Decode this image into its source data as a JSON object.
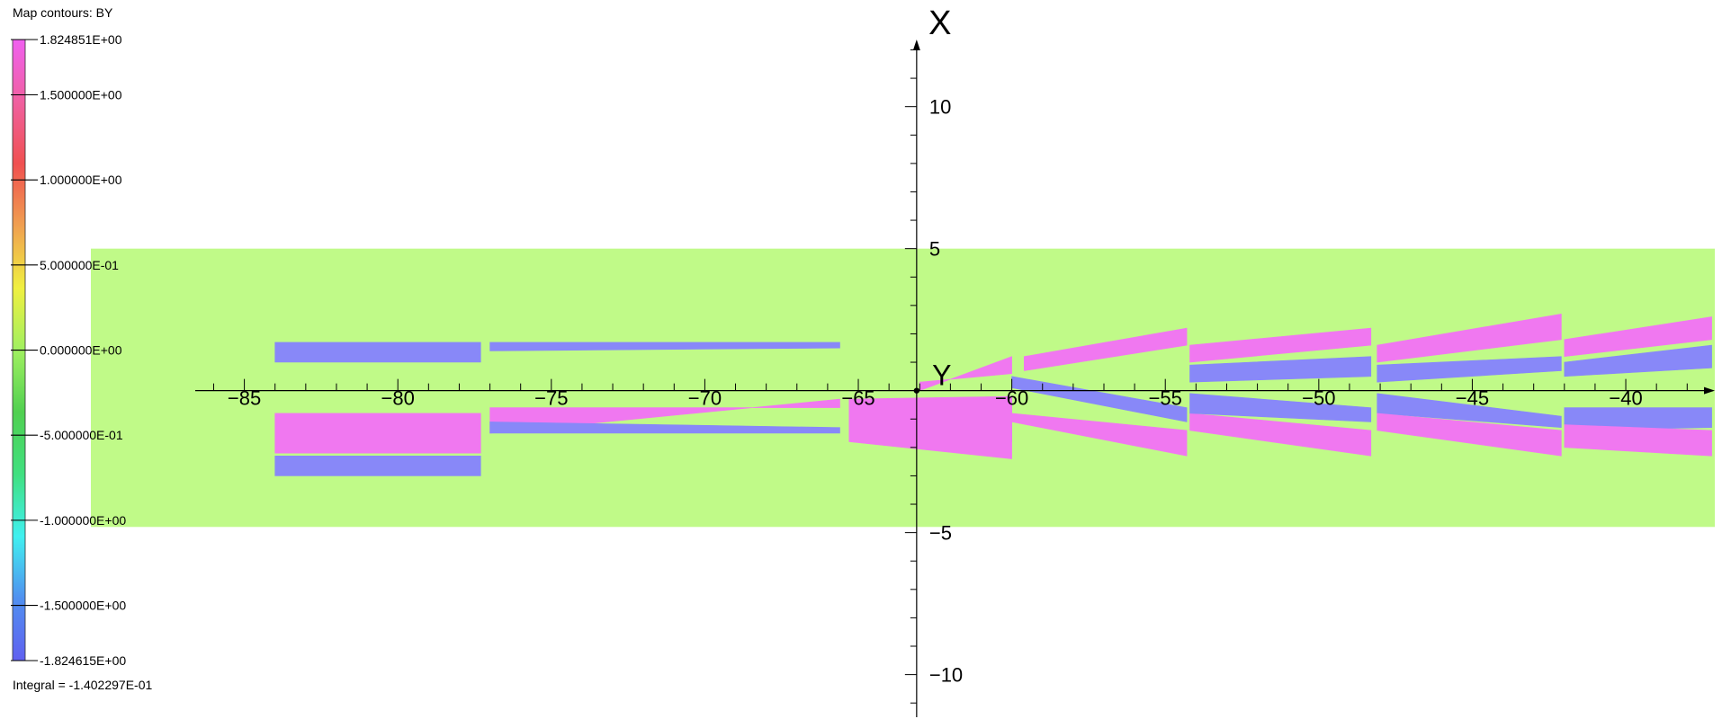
{
  "legend": {
    "title": "Map contours: BY",
    "integral": "Integral = -1.402297E-01",
    "entries": [
      {
        "value": 1.824851,
        "label": "1.824851E+00"
      },
      {
        "value": 1.5,
        "label": "1.500000E+00"
      },
      {
        "value": 1.0,
        "label": "1.000000E+00"
      },
      {
        "value": 0.5,
        "label": "5.000000E-01"
      },
      {
        "value": 0.0,
        "label": "0.000000E+00"
      },
      {
        "value": -0.5,
        "label": "-5.000000E-01"
      },
      {
        "value": -1.0,
        "label": "-1.000000E+00"
      },
      {
        "value": -1.5,
        "label": "-1.500000E+00"
      },
      {
        "value": -1.824615,
        "label": "-1.824615E+00"
      }
    ],
    "range": [
      -1.824615,
      1.824851
    ],
    "colors": [
      "#6060f0",
      "#5090f0",
      "#40f0f0",
      "#40e080",
      "#50d050",
      "#a0f060",
      "#f0f040",
      "#f0a050",
      "#f05050",
      "#f060a0",
      "#f060f0"
    ]
  },
  "chart_data": {
    "type": "heatmap",
    "xlabel": "Y",
    "ylabel": "X",
    "x_ticks": [
      -85,
      -80,
      -75,
      -70,
      -65,
      -60,
      -55,
      -50,
      -45,
      -40
    ],
    "y_ticks": [
      10,
      5,
      -5,
      -10
    ],
    "xlim": [
      -86.6,
      -37.1
    ],
    "ylim": [
      -11.5,
      12.3
    ],
    "origin": [
      -63.1,
      0.0
    ],
    "domain": {
      "x": [
        -90.0,
        -37.1
      ],
      "y": [
        -4.8,
        5.0
      ]
    },
    "background_value": 0.0,
    "colors": {
      "background": "#c0fa88",
      "positive": "#f078f0",
      "negative": "#8888f8"
    },
    "regions": [
      {
        "value": 1.82,
        "xl": -84.0,
        "xr": -77.3,
        "tl": [
          -0.8,
          -2.2
        ],
        "tr": [
          -0.8,
          -2.2
        ]
      },
      {
        "value": -1.82,
        "xl": -84.0,
        "xr": -77.3,
        "tl": [
          1.7,
          1.0
        ],
        "tr": [
          1.7,
          1.0
        ]
      },
      {
        "value": -1.82,
        "xl": -84.0,
        "xr": -77.3,
        "tl": [
          -2.3,
          -3.0
        ],
        "tr": [
          -2.3,
          -3.0
        ]
      },
      {
        "value": 1.82,
        "xl": -77.0,
        "xr": -65.6,
        "tl": [
          -0.6,
          -1.5
        ],
        "tr": [
          -0.6,
          -0.3
        ]
      },
      {
        "value": -1.82,
        "xl": -77.0,
        "xr": -65.6,
        "tl": [
          1.7,
          1.4
        ],
        "tr": [
          1.7,
          1.5
        ]
      },
      {
        "value": -1.82,
        "xl": -77.0,
        "xr": -65.6,
        "tl": [
          -1.1,
          -1.5
        ],
        "tr": [
          -1.3,
          -1.5
        ]
      },
      {
        "value": -1.82,
        "xl": -65.3,
        "xr": -60.0,
        "tl": [
          -0.5,
          -1.0
        ],
        "tr": [
          -0.2,
          -1.8
        ]
      },
      {
        "value": 1.82,
        "xl": -65.3,
        "xr": -60.0,
        "tl": [
          -0.3,
          -1.8
        ],
        "tr": [
          -0.2,
          -2.4
        ]
      },
      {
        "value": 1.82,
        "xl": -63.0,
        "xr": -60.0,
        "tl": [
          0.0,
          0.3
        ],
        "tr": [
          1.2,
          0.6
        ]
      },
      {
        "value": -1.82,
        "xl": -60.0,
        "xr": -54.3,
        "tl": [
          0.5,
          0.1
        ],
        "tr": [
          -0.6,
          -1.1
        ]
      },
      {
        "value": 1.82,
        "xl": -60.0,
        "xr": -54.3,
        "tl": [
          -0.8,
          -1.1
        ],
        "tr": [
          -1.4,
          -2.3
        ]
      },
      {
        "value": 1.82,
        "xl": -59.6,
        "xr": -54.3,
        "tl": [
          1.2,
          0.7
        ],
        "tr": [
          2.2,
          1.6
        ]
      },
      {
        "value": -1.82,
        "xl": -54.2,
        "xr": -48.3,
        "tl": [
          0.9,
          0.3
        ],
        "tr": [
          1.2,
          0.5
        ]
      },
      {
        "value": 1.82,
        "xl": -54.2,
        "xr": -48.3,
        "tl": [
          -0.8,
          -1.4
        ],
        "tr": [
          -1.4,
          -2.3
        ]
      },
      {
        "value": -1.82,
        "xl": -54.2,
        "xr": -48.3,
        "tl": [
          -0.1,
          -0.8
        ],
        "tr": [
          -0.6,
          -1.1
        ]
      },
      {
        "value": 1.82,
        "xl": -54.2,
        "xr": -48.3,
        "tl": [
          1.6,
          1.0
        ],
        "tr": [
          2.2,
          1.6
        ]
      },
      {
        "value": 1.82,
        "xl": -48.1,
        "xr": -42.1,
        "tl": [
          1.6,
          1.0
        ],
        "tr": [
          2.7,
          1.8
        ]
      },
      {
        "value": -1.82,
        "xl": -48.1,
        "xr": -42.1,
        "tl": [
          0.9,
          0.3
        ],
        "tr": [
          1.2,
          0.7
        ]
      },
      {
        "value": -1.82,
        "xl": -48.1,
        "xr": -42.1,
        "tl": [
          -0.1,
          -0.8
        ],
        "tr": [
          -0.9,
          -1.3
        ]
      },
      {
        "value": 1.82,
        "xl": -48.1,
        "xr": -42.1,
        "tl": [
          -0.8,
          -1.4
        ],
        "tr": [
          -1.4,
          -2.3
        ]
      },
      {
        "value": 1.82,
        "xl": -42.0,
        "xr": -37.2,
        "tl": [
          1.8,
          1.2
        ],
        "tr": [
          2.6,
          1.8
        ]
      },
      {
        "value": -1.82,
        "xl": -42.0,
        "xr": -37.2,
        "tl": [
          1.0,
          0.5
        ],
        "tr": [
          1.6,
          0.8
        ]
      },
      {
        "value": -1.82,
        "xl": -42.0,
        "xr": -37.2,
        "tl": [
          -0.6,
          -1.4
        ],
        "tr": [
          -0.6,
          -1.3
        ]
      },
      {
        "value": 1.82,
        "xl": -42.0,
        "xr": -37.2,
        "tl": [
          -1.2,
          -2.0
        ],
        "tr": [
          -1.4,
          -2.3
        ]
      }
    ]
  }
}
